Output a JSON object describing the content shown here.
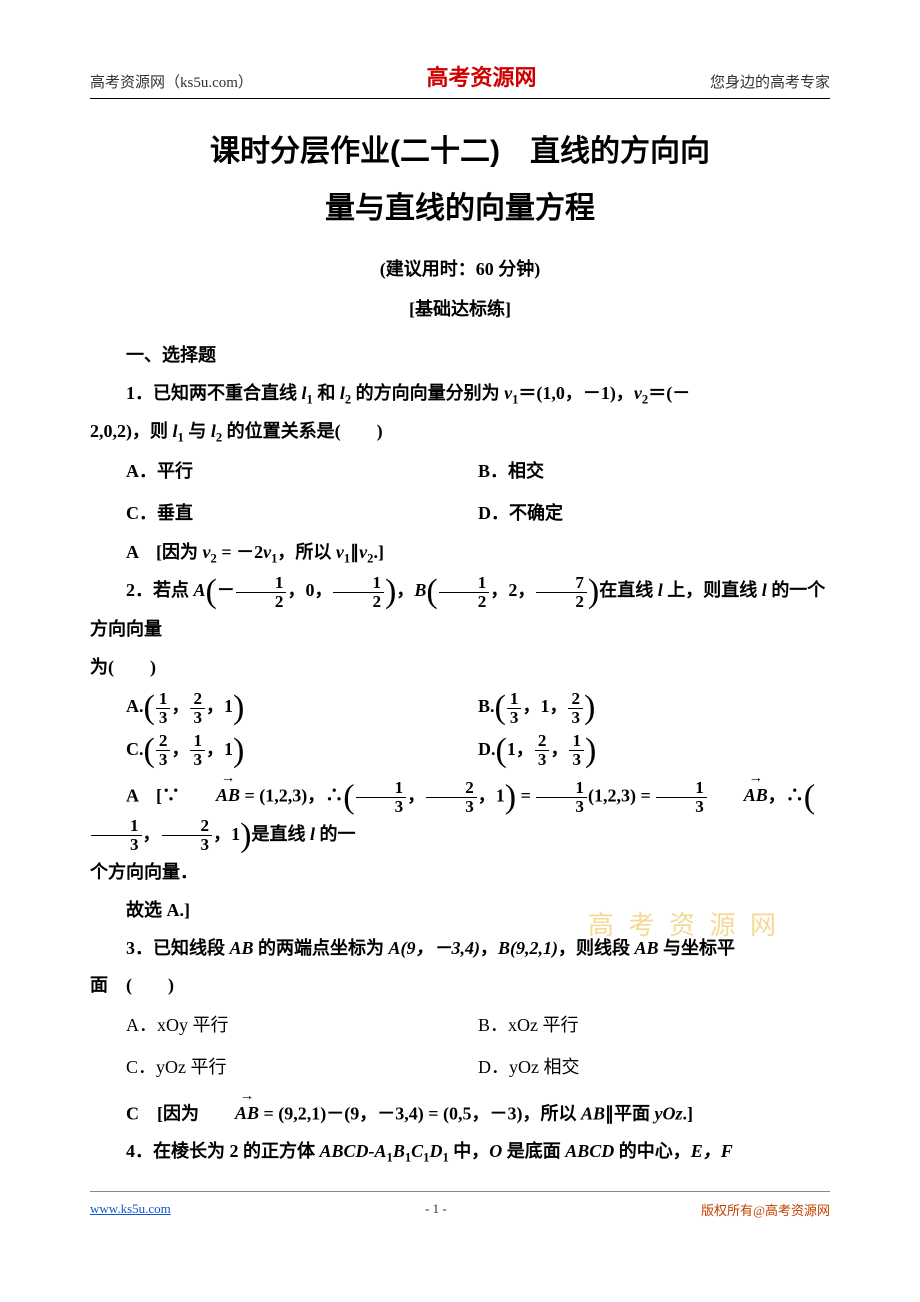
{
  "header": {
    "left": "高考资源网（ks5u.com）",
    "center": "高考资源网",
    "right": "您身边的高考专家"
  },
  "title_line1": "课时分层作业(二十二)　直线的方向向",
  "title_line2": "量与直线的向量方程",
  "time_hint": "(建议用时：60 分钟)",
  "section_basic": "[基础达标练]",
  "sec1_heading": "一、选择题",
  "q1": {
    "stem_a": "1．已知两不重合直线 ",
    "l1": "l",
    "sub1": "1",
    "mid1": " 和 ",
    "l2": "l",
    "sub2": "2",
    "mid2": " 的方向向量分别为 ",
    "v1": "v",
    "v1sub": "1",
    "eq1": "＝(1,0，－1)，",
    "v2": "v",
    "v2sub": "2",
    "eq2": "＝(－",
    "stem_b": "2,0,2)，则 ",
    "mid3": " 与 ",
    "tail": " 的位置关系是(　　)",
    "optA": "A．平行",
    "optB": "B．相交",
    "optC": "C．垂直",
    "optD": "D．不确定",
    "ans_letter": "A",
    "ans_open": "　[因为 ",
    "ans_mid": " = －2",
    "ans_tail": "，所以 ",
    "ans_par": "∥",
    "ans_end": ".]"
  },
  "q2": {
    "lead": "2．若点 ",
    "A_label": "A",
    "A1n": "1",
    "A1d": "2",
    "A2": "0",
    "A3n": "1",
    "A3d": "2",
    "B_label": "B",
    "B1n": "1",
    "B1d": "2",
    "B2": "2",
    "B3n": "7",
    "B3d": "2",
    "mid": "在直线 ",
    "lname": "l",
    "mid2": " 上，则直线 ",
    "tail": " 的一个方向向量",
    "tail2": "为(　　)",
    "optA_pre": "A.",
    "A_o1n": "1",
    "A_o1d": "3",
    "A_o2n": "2",
    "A_o2d": "3",
    "A_o3": "1",
    "optB_pre": "B.",
    "B_o1n": "1",
    "B_o1d": "3",
    "B_o2": "1",
    "B_o3n": "2",
    "B_o3d": "3",
    "optC_pre": "C.",
    "C_o1n": "2",
    "C_o1d": "3",
    "C_o2n": "1",
    "C_o2d": "3",
    "C_o3": "1",
    "optD_pre": "D.",
    "D_o1": "1",
    "D_o2n": "2",
    "D_o2d": "3",
    "D_o3n": "1",
    "D_o3d": "3",
    "ans_letter": "A",
    "ans_p1": "　[∵",
    "ans_AB": "AB",
    "ans_eqvec": " = (1,2,3)，∴",
    "ans_mid1n": "1",
    "ans_mid1d": "3",
    "ans_mid2n": "2",
    "ans_mid2d": "3",
    "ans_mid3": "1",
    "ans_eq2": " = ",
    "ans_frac_n": "1",
    "ans_frac_d": "3",
    "ans_txt2": "(1,2,3) = ",
    "ans_txt3": "，∴",
    "ans_tail": "是直线 ",
    "ans_tail2": " 的一",
    "line2": "个方向向量．",
    "line3": "故选 A.]"
  },
  "q3": {
    "stem_a": "3．已知线段 ",
    "AB": "AB",
    "mid1": " 的两端点坐标为 ",
    "Aexpr": "A(9，－3,4)",
    "sep": "，",
    "Bexpr": "B(9,2,1)",
    "mid2": "，则线段 ",
    "tail": " 与坐标平",
    "stem_b": "面　(　　)",
    "optA": "A．xOy 平行",
    "optB": "B．xOz 平行",
    "optC": "C．yOz 平行",
    "optD": "D．yOz 相交",
    "ans_letter": "C",
    "ans_open": "　[因为",
    "ans_vec": "AB",
    "ans_expr": " = (9,2,1)－(9，－3,4) = (0,5，－3)，所以 ",
    "ans_mid": "∥平面 ",
    "ans_plane": "yOz",
    "ans_end": ".]"
  },
  "q4": {
    "stem": "4．在棱长为 2 的正方体 ",
    "cube1": "ABCD-A",
    "s1": "1",
    "cube2": "B",
    "s2": "1",
    "cube3": "C",
    "s3": "1",
    "cube4": "D",
    "s4": "1",
    "mid": " 中，",
    "O": "O",
    "mid2": " 是底面 ",
    "base": "ABCD",
    "mid3": " 的中心，",
    "EF": "E，F"
  },
  "watermark": "高 考 资 源 网",
  "footer": {
    "left": "www.ks5u.com",
    "center": "- 1 -",
    "right": "版权所有@高考资源网"
  },
  "colors": {
    "brand_red": "#d00000",
    "link_blue": "#1155cc",
    "copyright": "#c04000",
    "watermark": "#f3d58a",
    "text": "#000000"
  }
}
